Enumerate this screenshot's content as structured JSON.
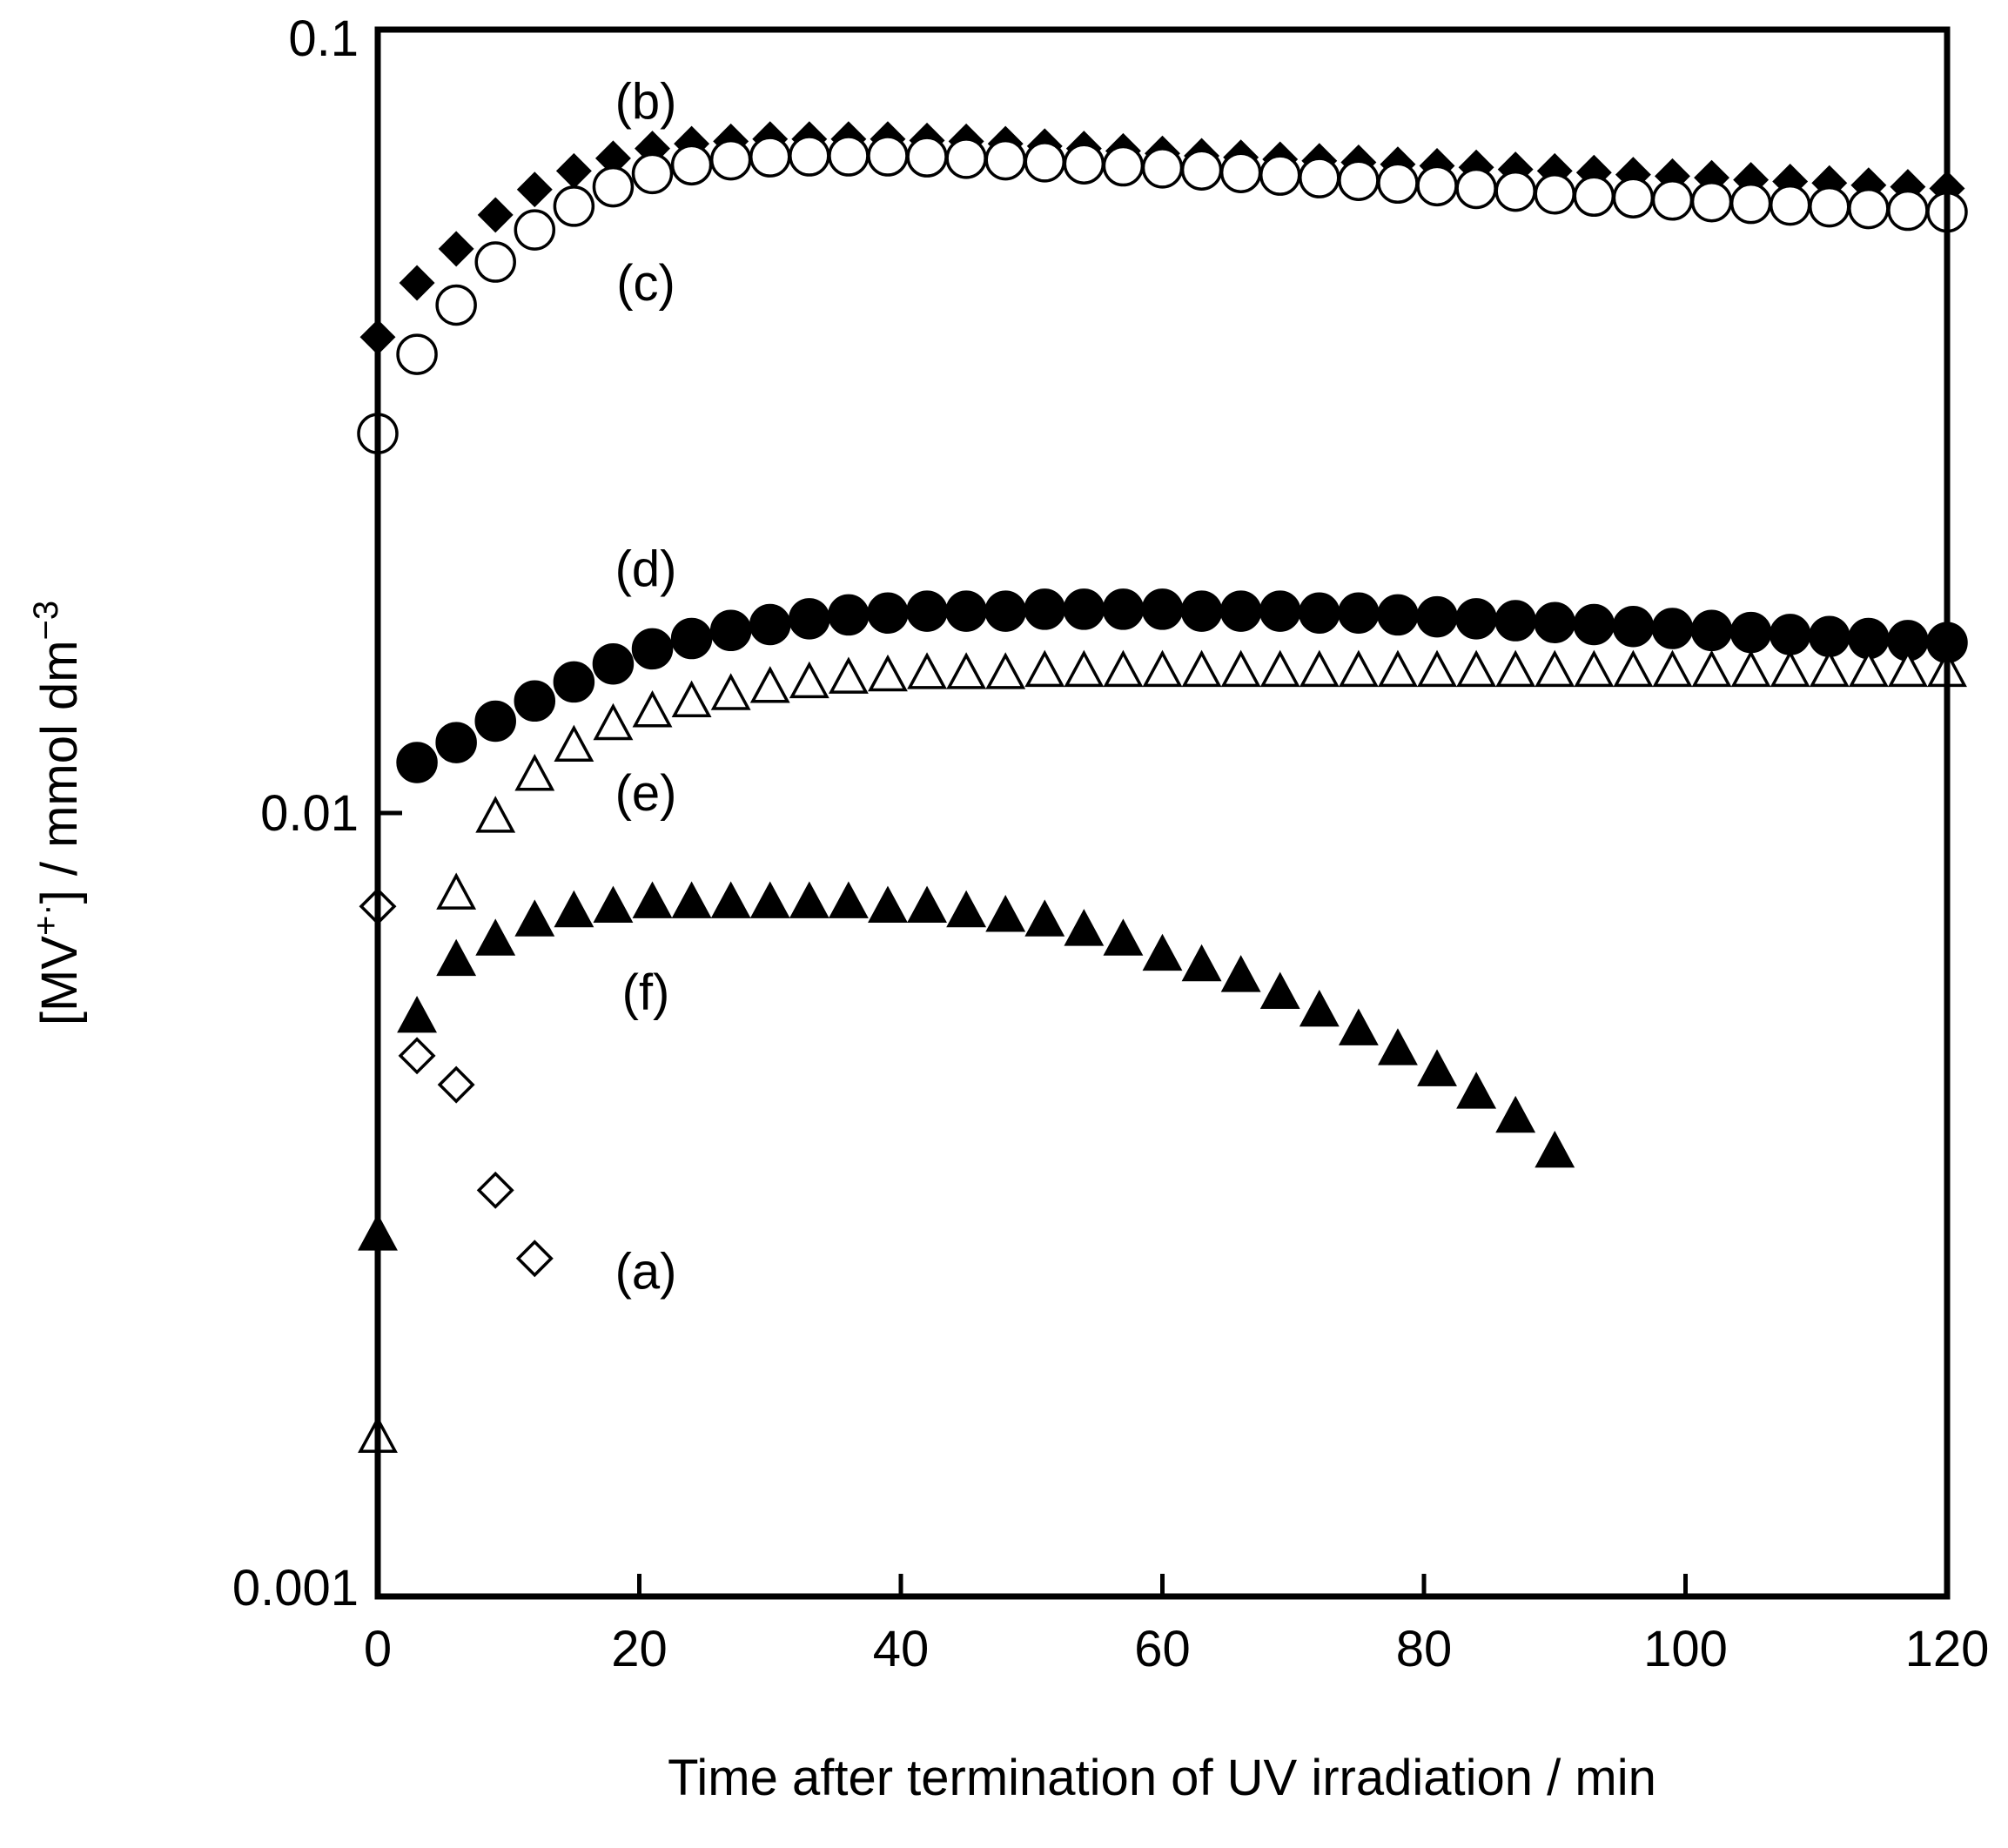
{
  "chart_data": {
    "type": "scatter",
    "title": "",
    "xlabel": "Time after termination of UV irradiation / min",
    "ylabel": {
      "prefix": "[MV",
      "superscript": "+·",
      "middle": "] / mmol dm",
      "unit_superscript": "−3"
    },
    "xlim": [
      0,
      120
    ],
    "ylim": [
      0.001,
      0.1
    ],
    "yscale": "log",
    "grid": false,
    "x_ticks": [
      0,
      20,
      40,
      60,
      80,
      100,
      120
    ],
    "x_tick_labels": [
      "0",
      "20",
      "40",
      "60",
      "80",
      "100",
      "120"
    ],
    "y_ticks": [
      0.001,
      0.01,
      0.1
    ],
    "y_tick_labels": [
      "0.001",
      "0.01",
      "0.1"
    ],
    "series": [
      {
        "name": "(a)",
        "marker": "diamond-open",
        "x": [
          0,
          3,
          6,
          9,
          12
        ],
        "y": [
          0.0076,
          0.0049,
          0.0045,
          0.0033,
          0.0027
        ]
      },
      {
        "name": "(b)",
        "marker": "diamond-filled",
        "x": [
          0,
          3,
          6,
          9,
          12,
          15,
          18,
          21,
          24,
          27,
          30,
          33,
          36,
          39,
          42,
          45,
          48,
          51,
          54,
          57,
          60,
          63,
          66,
          69,
          72,
          75,
          78,
          81,
          84,
          87,
          90,
          93,
          96,
          99,
          102,
          105,
          108,
          111,
          114,
          117,
          120
        ],
        "y": [
          0.0405,
          0.0475,
          0.0525,
          0.058,
          0.0625,
          0.066,
          0.0685,
          0.0705,
          0.0715,
          0.072,
          0.0725,
          0.0725,
          0.0725,
          0.0725,
          0.0722,
          0.072,
          0.0715,
          0.071,
          0.0705,
          0.07,
          0.0695,
          0.069,
          0.0687,
          0.0683,
          0.068,
          0.0677,
          0.0673,
          0.067,
          0.0667,
          0.0663,
          0.066,
          0.0657,
          0.0653,
          0.065,
          0.0647,
          0.0643,
          0.064,
          0.0637,
          0.0633,
          0.063,
          0.0627
        ]
      },
      {
        "name": "(c)",
        "marker": "circle-open",
        "x": [
          0,
          3,
          6,
          9,
          12,
          15,
          18,
          21,
          24,
          27,
          30,
          33,
          36,
          39,
          42,
          45,
          48,
          51,
          54,
          57,
          60,
          63,
          66,
          69,
          72,
          75,
          78,
          81,
          84,
          87,
          90,
          93,
          96,
          99,
          102,
          105,
          108,
          111,
          114,
          117,
          120
        ],
        "y": [
          0.0305,
          0.0385,
          0.0445,
          0.0505,
          0.0555,
          0.0595,
          0.063,
          0.0655,
          0.0672,
          0.0682,
          0.0688,
          0.069,
          0.069,
          0.069,
          0.0688,
          0.0685,
          0.0682,
          0.0678,
          0.0674,
          0.067,
          0.0666,
          0.0662,
          0.0657,
          0.0652,
          0.0647,
          0.0642,
          0.0637,
          0.0632,
          0.0627,
          0.0622,
          0.0617,
          0.0613,
          0.061,
          0.0606,
          0.0603,
          0.06,
          0.0597,
          0.0594,
          0.0591,
          0.0588,
          0.0585
        ]
      },
      {
        "name": "(d)",
        "marker": "circle-filled",
        "x": [
          3,
          6,
          9,
          12,
          15,
          18,
          21,
          24,
          27,
          30,
          33,
          36,
          39,
          42,
          45,
          48,
          51,
          54,
          57,
          60,
          63,
          66,
          69,
          72,
          75,
          78,
          81,
          84,
          87,
          90,
          93,
          96,
          99,
          102,
          105,
          108,
          111,
          114,
          117,
          120
        ],
        "y": [
          0.0116,
          0.0123,
          0.0131,
          0.0139,
          0.0147,
          0.0155,
          0.0162,
          0.0167,
          0.0171,
          0.0174,
          0.0177,
          0.0179,
          0.018,
          0.0181,
          0.0181,
          0.0181,
          0.0182,
          0.0182,
          0.0182,
          0.0182,
          0.0181,
          0.0181,
          0.0181,
          0.018,
          0.018,
          0.0179,
          0.0178,
          0.0177,
          0.0176,
          0.0175,
          0.0174,
          0.0173,
          0.0172,
          0.0171,
          0.017,
          0.0169,
          0.0168,
          0.0167,
          0.0166,
          0.0165
        ]
      },
      {
        "name": "(e)",
        "marker": "triangle-open",
        "x": [
          0,
          6,
          9,
          12,
          15,
          18,
          21,
          24,
          27,
          30,
          33,
          36,
          39,
          42,
          45,
          48,
          51,
          54,
          57,
          60,
          63,
          66,
          69,
          72,
          75,
          78,
          81,
          84,
          87,
          90,
          93,
          96,
          99,
          102,
          105,
          108,
          111,
          114,
          117,
          120
        ],
        "y": [
          0.0016,
          0.0079,
          0.0099,
          0.0112,
          0.0122,
          0.013,
          0.0135,
          0.0139,
          0.0142,
          0.0145,
          0.0147,
          0.0149,
          0.015,
          0.0151,
          0.0151,
          0.0151,
          0.0152,
          0.0152,
          0.0152,
          0.0152,
          0.0152,
          0.0152,
          0.0152,
          0.0152,
          0.0152,
          0.0152,
          0.0152,
          0.0152,
          0.0152,
          0.0152,
          0.0152,
          0.0152,
          0.0152,
          0.0152,
          0.0152,
          0.0152,
          0.0152,
          0.0152,
          0.0152,
          0.0152
        ]
      },
      {
        "name": "(f)",
        "marker": "triangle-filled",
        "x": [
          0,
          3,
          6,
          9,
          12,
          15,
          18,
          21,
          24,
          27,
          30,
          33,
          36,
          39,
          42,
          45,
          48,
          51,
          54,
          57,
          60,
          63,
          66,
          69,
          72,
          75,
          78,
          81,
          84,
          87,
          90
        ],
        "y": [
          0.0029,
          0.0055,
          0.0065,
          0.0069,
          0.0073,
          0.0075,
          0.0076,
          0.0077,
          0.0077,
          0.0077,
          0.0077,
          0.0077,
          0.0077,
          0.0076,
          0.0076,
          0.0075,
          0.0074,
          0.0073,
          0.0071,
          0.0069,
          0.0066,
          0.0064,
          0.0062,
          0.0059,
          0.0056,
          0.0053,
          0.005,
          0.0047,
          0.0044,
          0.0041,
          0.0037
        ]
      }
    ],
    "annotations": [
      {
        "text": "(b)",
        "x": 20.5,
        "y": 0.081
      },
      {
        "text": "(c)",
        "x": 20.5,
        "y": 0.0475
      },
      {
        "text": "(d)",
        "x": 20.5,
        "y": 0.0205
      },
      {
        "text": "(e)",
        "x": 20.5,
        "y": 0.0106
      },
      {
        "text": "(f)",
        "x": 20.5,
        "y": 0.0059
      },
      {
        "text": "(a)",
        "x": 20.5,
        "y": 0.0026
      }
    ]
  }
}
